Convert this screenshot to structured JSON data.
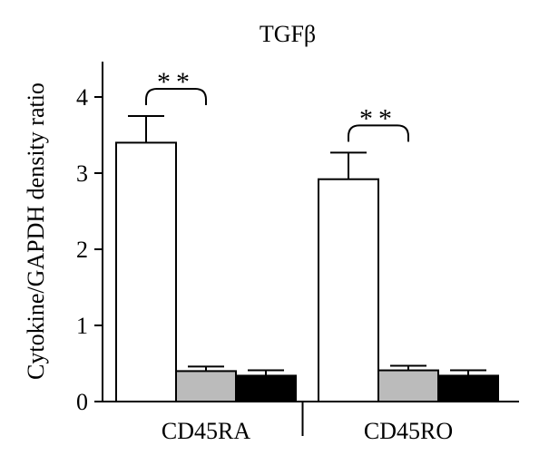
{
  "chart_data": {
    "type": "bar",
    "title": "TGFβ",
    "ylabel": "Cytokine/GAPDH density ratio",
    "xlabel": "",
    "ylim": [
      0,
      4.5
    ],
    "yticks": [
      0,
      1,
      2,
      3,
      4
    ],
    "groups": [
      "CD45RA",
      "CD45RO"
    ],
    "series": [
      {
        "fill": "#ffffff",
        "values": [
          3.4,
          2.92
        ],
        "errors": [
          0.35,
          0.35
        ]
      },
      {
        "fill": "#bbbbbb",
        "values": [
          0.4,
          0.41
        ],
        "errors": [
          0.06,
          0.06
        ]
      },
      {
        "fill": "#000000",
        "values": [
          0.34,
          0.34
        ],
        "errors": [
          0.07,
          0.07
        ]
      }
    ],
    "annotations": [
      {
        "group": "CD45RA",
        "from_series": 0,
        "to_series": 1,
        "label": "**"
      },
      {
        "group": "CD45RO",
        "from_series": 0,
        "to_series": 1,
        "label": "**"
      }
    ],
    "grid": false,
    "legend": "none"
  }
}
